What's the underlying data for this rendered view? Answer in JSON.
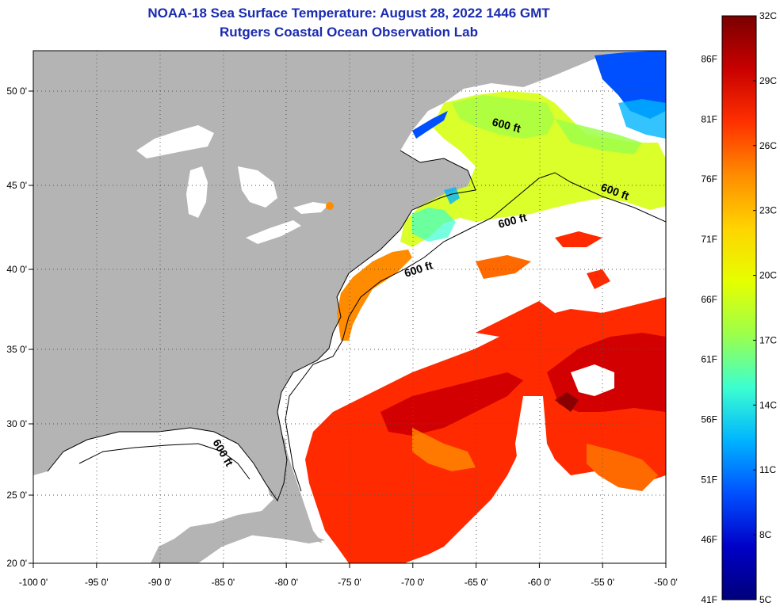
{
  "header": {
    "title": "NOAA-18 Sea Surface Temperature:  August 28, 2022 1446 GMT",
    "subtitle": "Rutgers Coastal Ocean Observation Lab"
  },
  "map": {
    "lon_range": [
      -100,
      -50
    ],
    "lat_range": [
      20,
      52.5
    ],
    "x_ticks": [
      "-100 0'",
      "-95 0'",
      "-90 0'",
      "-85 0'",
      "-80 0'",
      "-75 0'",
      "-70 0'",
      "-65 0'",
      "-60 0'",
      "-55 0'",
      "-50 0'"
    ],
    "y_ticks": [
      "50 0'",
      "45 0'",
      "40 0'",
      "35 0'",
      "30 0'",
      "25 0'",
      "20 0'"
    ],
    "contour_label": "600 ft",
    "colors": {
      "land": "#b4b4b4",
      "no_data": "#ffffff",
      "coastline": "#000000"
    }
  },
  "colorbar": {
    "celsius_labels": [
      "32C",
      "29C",
      "26C",
      "23C",
      "20C",
      "17C",
      "14C",
      "11C",
      "8C",
      "5C"
    ],
    "fahrenheit_labels": [
      "86F",
      "81F",
      "76F",
      "71F",
      "66F",
      "61F",
      "56F",
      "51F",
      "46F",
      "41F"
    ],
    "range_c": [
      5,
      32
    ],
    "range_f": [
      41,
      89.6
    ],
    "gradient": [
      "#7a0000",
      "#c80000",
      "#ff3000",
      "#ff8c00",
      "#ffd400",
      "#e6ff00",
      "#9cff4a",
      "#3cffd0",
      "#00b4ff",
      "#0050ff",
      "#0000c8",
      "#00007a"
    ]
  }
}
